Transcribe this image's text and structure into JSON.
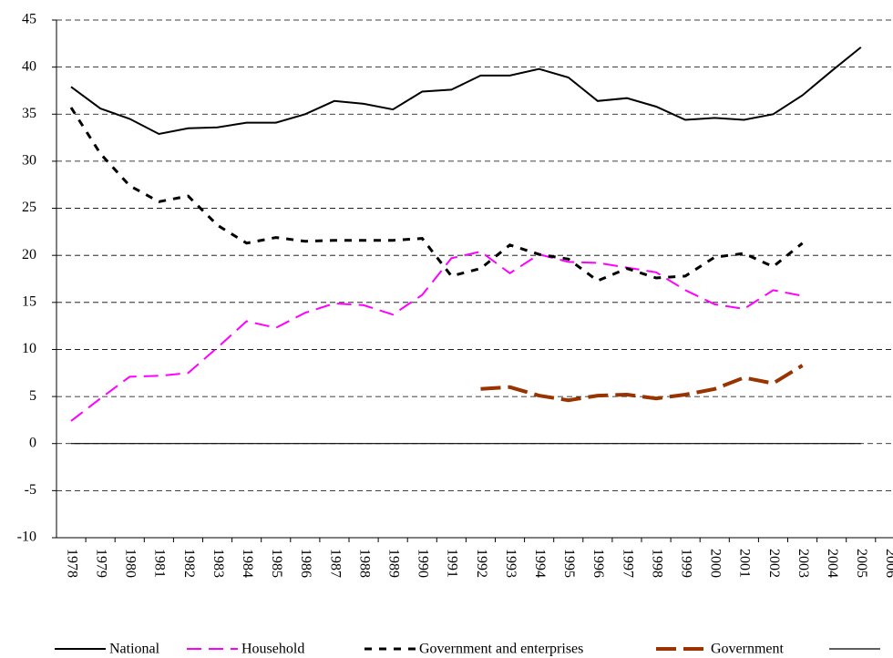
{
  "chart_data": {
    "type": "line",
    "categories": [
      "1978",
      "1979",
      "1980",
      "1981",
      "1982",
      "1983",
      "1984",
      "1985",
      "1986",
      "1987",
      "1988",
      "1989",
      "1990",
      "1991",
      "1992",
      "1993",
      "1994",
      "1995",
      "1996",
      "1997",
      "1998",
      "1999",
      "2000",
      "2001",
      "2002",
      "2003",
      "2004",
      "2005",
      "2006"
    ],
    "series": [
      {
        "name": "National",
        "color": "#000000",
        "values": [
          37.9,
          35.6,
          34.5,
          32.9,
          33.5,
          33.6,
          34.1,
          34.1,
          35.0,
          36.4,
          36.1,
          35.5,
          37.4,
          37.6,
          39.1,
          39.1,
          39.8,
          38.9,
          36.4,
          36.7,
          35.8,
          34.4,
          34.6,
          34.4,
          35.0,
          37.0,
          39.6,
          42.1,
          null
        ]
      },
      {
        "name": "Household",
        "color": "#ff00ff",
        "values": [
          2.4,
          4.8,
          7.1,
          7.2,
          7.5,
          10.2,
          13.0,
          12.3,
          13.9,
          14.9,
          14.7,
          13.7,
          15.8,
          19.7,
          20.4,
          18.1,
          20.1,
          19.3,
          19.2,
          18.7,
          18.2,
          16.3,
          14.8,
          14.3,
          16.3,
          15.7,
          null,
          null,
          null
        ]
      },
      {
        "name": "Government and enterprises",
        "color": "#000000",
        "values": [
          35.7,
          30.8,
          27.4,
          25.7,
          26.3,
          23.2,
          21.3,
          21.9,
          21.5,
          21.6,
          21.6,
          21.6,
          21.8,
          17.8,
          18.6,
          21.1,
          20.1,
          19.6,
          17.3,
          18.6,
          17.6,
          17.8,
          19.8,
          20.2,
          18.8,
          21.3,
          null,
          null,
          null
        ]
      },
      {
        "name": "Government",
        "color": "#993300",
        "values": [
          null,
          null,
          null,
          null,
          null,
          null,
          null,
          null,
          null,
          null,
          null,
          null,
          null,
          null,
          5.8,
          6.0,
          5.1,
          4.6,
          5.1,
          5.2,
          4.8,
          5.2,
          5.8,
          7.0,
          6.4,
          8.3,
          null,
          null,
          null
        ]
      },
      {
        "name": null,
        "color": "#000000",
        "values": [
          0,
          0,
          0,
          0,
          0,
          0,
          0,
          0,
          0,
          0,
          0,
          0,
          0,
          0,
          0,
          0,
          0,
          0,
          0,
          0,
          0,
          0,
          0,
          0,
          0,
          0,
          0,
          0,
          null
        ]
      }
    ],
    "ylim": [
      -10,
      45
    ],
    "yticks": [
      -10,
      -5,
      0,
      5,
      10,
      15,
      20,
      25,
      30,
      35,
      40,
      45
    ],
    "grid": true
  }
}
